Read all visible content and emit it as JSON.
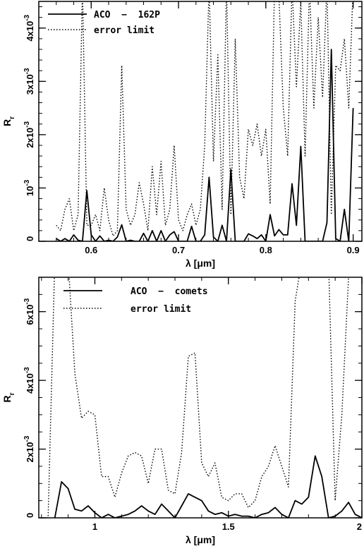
{
  "chart_data": [
    {
      "type": "line",
      "xlabel": "λ [μm]",
      "ylabel_main": "R",
      "ylabel_sub": "r",
      "xlim": [
        0.54,
        0.91
      ],
      "ylim": [
        0,
        0.0045
      ],
      "xticks": [
        0.6,
        0.7,
        0.8,
        0.9
      ],
      "xtick_labels": [
        "0.6",
        "0.7",
        "0.8",
        "0.9"
      ],
      "xminor_step": 0.02,
      "yticks": [
        0,
        0.001,
        0.002,
        0.003,
        0.004
      ],
      "ytick_mantissa": [
        "0",
        "10",
        "2x10",
        "3x10",
        "4x10"
      ],
      "ytick_exponent": [
        "",
        "-3",
        "-3",
        "-3",
        "-3"
      ],
      "yminor_step": 0.0002,
      "legend": "top-left",
      "series": [
        {
          "name": "ACO  −  162P",
          "style": "solid",
          "x": [
            0.56,
            0.565,
            0.57,
            0.575,
            0.58,
            0.585,
            0.59,
            0.595,
            0.6,
            0.605,
            0.61,
            0.615,
            0.62,
            0.625,
            0.63,
            0.635,
            0.64,
            0.645,
            0.65,
            0.655,
            0.66,
            0.665,
            0.67,
            0.675,
            0.68,
            0.685,
            0.69,
            0.695,
            0.7,
            0.705,
            0.71,
            0.715,
            0.72,
            0.725,
            0.73,
            0.735,
            0.74,
            0.745,
            0.75,
            0.755,
            0.76,
            0.765,
            0.77,
            0.775,
            0.78,
            0.785,
            0.79,
            0.795,
            0.8,
            0.805,
            0.81,
            0.815,
            0.82,
            0.825,
            0.83,
            0.835,
            0.84,
            0.845,
            0.85,
            0.855,
            0.86,
            0.865,
            0.87,
            0.875,
            0.88,
            0.885,
            0.89,
            0.895,
            0.9
          ],
          "y": [
            5e-05,
            0.0,
            5e-05,
            0.0,
            0.00012,
            2e-05,
            0.0,
            0.00095,
            0.00012,
            0.0,
            0.0001,
            0.0,
            2e-05,
            0.0,
            8e-05,
            0.00031,
            0.0,
            2e-05,
            0.0,
            0.0,
            0.00015,
            0.0,
            0.0002,
            0.0,
            0.0002,
            0.0,
            0.00012,
            0.00018,
            0.0,
            0.0,
            0.0,
            0.00028,
            0.0,
            0.0,
            0.00012,
            0.0012,
            8e-05,
            0.0,
            0.0003,
            0.0,
            0.00135,
            0.0,
            0.0,
            0.0,
            0.00014,
            0.0001,
            5e-05,
            0.00012,
            0.0,
            0.0005,
            0.0001,
            0.00022,
            0.00012,
            0.00012,
            0.00108,
            0.0003,
            0.00178,
            0.0,
            0.0,
            0.0,
            0.0,
            0.0,
            0.00035,
            0.0036,
            5e-05,
            0.0,
            0.0006,
            0.0,
            0.0025
          ]
        },
        {
          "name": "error limit",
          "style": "dotted",
          "x": [
            0.56,
            0.565,
            0.57,
            0.575,
            0.58,
            0.585,
            0.59,
            0.595,
            0.6,
            0.605,
            0.61,
            0.615,
            0.62,
            0.625,
            0.63,
            0.635,
            0.64,
            0.645,
            0.65,
            0.655,
            0.66,
            0.665,
            0.67,
            0.675,
            0.68,
            0.685,
            0.69,
            0.695,
            0.7,
            0.705,
            0.71,
            0.715,
            0.72,
            0.725,
            0.73,
            0.735,
            0.74,
            0.745,
            0.75,
            0.755,
            0.76,
            0.765,
            0.77,
            0.775,
            0.78,
            0.785,
            0.79,
            0.795,
            0.8,
            0.805,
            0.81,
            0.815,
            0.82,
            0.825,
            0.83,
            0.835,
            0.84,
            0.845,
            0.85,
            0.855,
            0.86,
            0.865,
            0.87,
            0.875,
            0.88,
            0.885,
            0.89,
            0.895,
            0.9
          ],
          "y": [
            0.0003,
            0.0002,
            0.0006,
            0.0008,
            0.0002,
            0.0005,
            0.0048,
            0.0003,
            0.0003,
            0.0005,
            0.0002,
            0.001,
            0.0004,
            0.0001,
            0.0002,
            0.0033,
            0.0006,
            0.0003,
            0.0005,
            0.0011,
            0.0007,
            0.0002,
            0.0014,
            0.0005,
            0.0015,
            0.0003,
            0.0006,
            0.0018,
            0.0004,
            0.0002,
            0.0005,
            0.0007,
            0.0003,
            0.0006,
            0.0018,
            0.0048,
            0.0015,
            0.0035,
            0.0006,
            0.0048,
            0.0005,
            0.0038,
            0.0012,
            0.0008,
            0.0021,
            0.0018,
            0.0022,
            0.0016,
            0.0021,
            0.0007,
            0.0048,
            0.0046,
            0.0025,
            0.0016,
            0.0048,
            0.0029,
            0.0045,
            0.0016,
            0.0048,
            0.0025,
            0.0042,
            0.0027,
            0.0048,
            0.0005,
            0.0033,
            0.0032,
            0.0038,
            0.0025,
            0.0048
          ]
        }
      ]
    },
    {
      "type": "line",
      "xlabel": "λ [μm]",
      "ylabel_main": "R",
      "ylabel_sub": "r",
      "xlim": [
        0.79,
        2.0
      ],
      "ylim": [
        0,
        0.007
      ],
      "xticks": [
        1.0,
        1.5,
        2.0
      ],
      "xtick_labels": [
        "1",
        "1.5",
        "2"
      ],
      "xminor_step": 0.1,
      "yticks": [
        0,
        0.002,
        0.004,
        0.006
      ],
      "ytick_mantissa": [
        "0",
        "2x10",
        "4x10",
        "6x10"
      ],
      "ytick_exponent": [
        "",
        "-3",
        "-3",
        "-3"
      ],
      "yminor_step": 0.0005,
      "legend": "top-left",
      "series": [
        {
          "name": "ACO  −  comets",
          "style": "solid",
          "x": [
            0.85,
            0.875,
            0.9,
            0.925,
            0.95,
            0.975,
            1.0,
            1.025,
            1.05,
            1.075,
            1.1,
            1.125,
            1.15,
            1.175,
            1.2,
            1.225,
            1.25,
            1.275,
            1.3,
            1.325,
            1.35,
            1.375,
            1.4,
            1.425,
            1.45,
            1.475,
            1.5,
            1.525,
            1.55,
            1.575,
            1.6,
            1.625,
            1.65,
            1.675,
            1.7,
            1.725,
            1.75,
            1.775,
            1.8,
            1.825,
            1.85,
            1.875,
            1.9,
            1.925,
            1.95,
            1.975,
            2.0
          ],
          "y": [
            0.0,
            0.00105,
            0.00085,
            0.00025,
            0.0002,
            0.00035,
            0.00015,
            0.0,
            0.0001,
            0.0,
            5e-05,
            0.0001,
            0.0002,
            0.00035,
            0.0002,
            0.0001,
            0.0004,
            0.0002,
            0.0,
            0.00035,
            0.0007,
            0.0006,
            0.0005,
            0.0002,
            0.0001,
            0.00015,
            5e-05,
            0.0001,
            5e-05,
            5e-05,
            0.0,
            0.0001,
            0.00015,
            0.0003,
            0.0001,
            0.0,
            0.0005,
            0.0004,
            0.0006,
            0.0018,
            0.0012,
            0.0,
            5e-05,
            0.0002,
            0.00045,
            0.0001,
            0.0
          ]
        },
        {
          "name": "error limit",
          "style": "dotted",
          "x": [
            0.8,
            0.825,
            0.85,
            0.875,
            0.9,
            0.925,
            0.95,
            0.975,
            1.0,
            1.025,
            1.05,
            1.075,
            1.1,
            1.125,
            1.15,
            1.175,
            1.2,
            1.225,
            1.25,
            1.275,
            1.3,
            1.325,
            1.35,
            1.375,
            1.4,
            1.425,
            1.45,
            1.475,
            1.5,
            1.525,
            1.55,
            1.575,
            1.6,
            1.625,
            1.65,
            1.675,
            1.7,
            1.725,
            1.75,
            1.775,
            1.8,
            1.825,
            1.85,
            1.875,
            1.9,
            1.925,
            1.95,
            1.975,
            2.0
          ],
          "y": [
            0.0,
            0.0,
            0.0075,
            0.0075,
            0.0075,
            0.0042,
            0.0029,
            0.0031,
            0.003,
            0.0012,
            0.0012,
            0.0006,
            0.0013,
            0.0018,
            0.0019,
            0.0018,
            0.001,
            0.002,
            0.002,
            0.0008,
            0.0007,
            0.0019,
            0.0047,
            0.0048,
            0.0016,
            0.0012,
            0.0016,
            0.0006,
            0.0005,
            0.0007,
            0.0007,
            0.0003,
            0.0005,
            0.0012,
            0.0015,
            0.0021,
            0.0015,
            0.0009,
            0.0063,
            0.0075,
            0.0075,
            0.0075,
            0.0075,
            0.0075,
            0.0005,
            0.003,
            0.007,
            0.0075,
            0.0075
          ]
        }
      ]
    }
  ]
}
